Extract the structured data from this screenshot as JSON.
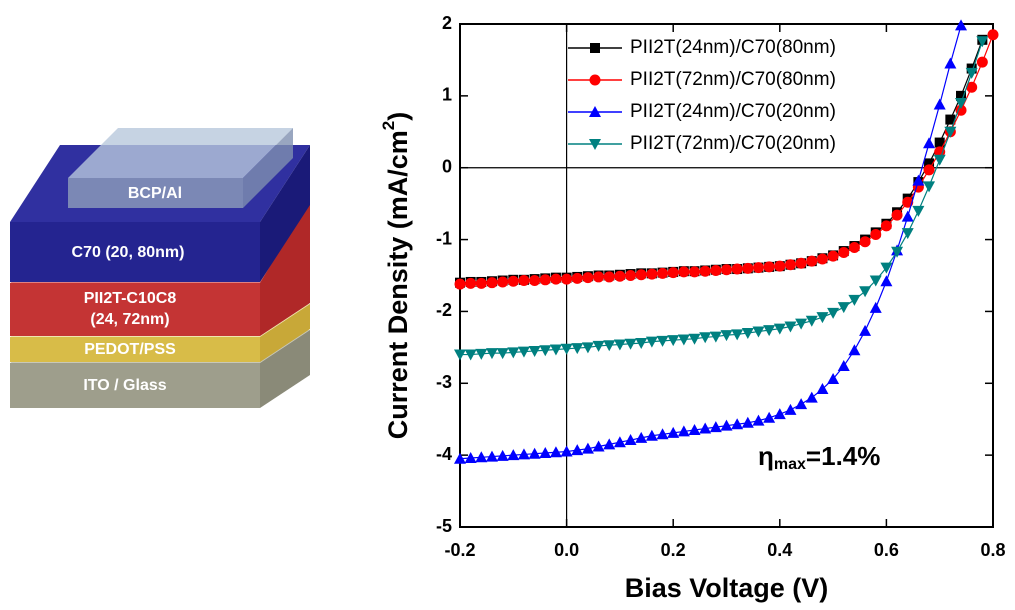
{
  "diagram": {
    "layers": [
      "BCP/Al",
      "C70 (20, 80nm)",
      "PII2T-C10C8",
      "(24, 72nm)",
      "PEDOT/PSS",
      "ITO / Glass"
    ]
  },
  "chart_data": {
    "type": "line",
    "xlabel": "Bias Voltage (V)",
    "ylabel": {
      "text": "Current Density (mA/cm",
      "superscript": "2",
      "close": ")"
    },
    "annotation": {
      "symbol": "η",
      "subscript": "max",
      "text": "=1.4%"
    },
    "xlim": [
      -0.2,
      0.8
    ],
    "ylim": [
      -5,
      2
    ],
    "xticks": [
      -0.2,
      {
        "value": 0,
        "label": "0.0"
      },
      0.2,
      0.4,
      0.6,
      0.8
    ],
    "yticks": [
      -5,
      -4,
      -3,
      -2,
      -1,
      0,
      1,
      2
    ],
    "zero_lines": true,
    "legend": "upper right",
    "x": [
      -0.2,
      -0.18,
      -0.16,
      -0.14,
      -0.12,
      -0.1,
      -0.08,
      -0.06,
      -0.04,
      -0.02,
      0,
      0.02,
      0.04,
      0.06,
      0.08,
      0.1,
      0.12,
      0.14,
      0.16,
      0.18,
      0.2,
      0.22,
      0.24,
      0.26,
      0.28,
      0.3,
      0.32,
      0.34,
      0.36,
      0.38,
      0.4,
      0.42,
      0.44,
      0.46,
      0.48,
      0.5,
      0.52,
      0.54,
      0.56,
      0.58,
      0.6,
      0.62,
      0.64,
      0.66,
      0.68,
      0.7,
      0.72,
      0.74,
      0.76,
      0.78,
      0.8
    ],
    "series": [
      {
        "name": "PII2T(24nm)/C70(80nm)",
        "color": "#000000",
        "marker": "square",
        "values": [
          -1.6,
          -1.59,
          -1.59,
          -1.58,
          -1.57,
          -1.56,
          -1.56,
          -1.55,
          -1.54,
          -1.53,
          -1.53,
          -1.52,
          -1.51,
          -1.5,
          -1.5,
          -1.49,
          -1.48,
          -1.47,
          -1.47,
          -1.46,
          -1.45,
          -1.44,
          -1.44,
          -1.43,
          -1.42,
          -1.41,
          -1.41,
          -1.4,
          -1.39,
          -1.38,
          -1.37,
          -1.35,
          -1.33,
          -1.3,
          -1.26,
          -1.22,
          -1.16,
          -1.09,
          -1.0,
          -0.9,
          -0.78,
          -0.62,
          -0.43,
          -0.2,
          0.06,
          0.35,
          0.67,
          1.0,
          1.38,
          1.78,
          null
        ]
      },
      {
        "name": "PII2T(72nm)/C70(80nm)",
        "color": "#ff0000",
        "marker": "circle",
        "values": [
          -1.62,
          -1.61,
          -1.61,
          -1.6,
          -1.59,
          -1.58,
          -1.57,
          -1.57,
          -1.56,
          -1.55,
          -1.55,
          -1.54,
          -1.53,
          -1.52,
          -1.52,
          -1.51,
          -1.5,
          -1.49,
          -1.48,
          -1.47,
          -1.46,
          -1.45,
          -1.45,
          -1.44,
          -1.43,
          -1.42,
          -1.41,
          -1.4,
          -1.39,
          -1.38,
          -1.37,
          -1.35,
          -1.33,
          -1.3,
          -1.27,
          -1.23,
          -1.18,
          -1.11,
          -1.03,
          -0.93,
          -0.81,
          -0.66,
          -0.48,
          -0.27,
          -0.03,
          0.22,
          0.5,
          0.8,
          1.12,
          1.47,
          1.85
        ]
      },
      {
        "name": "PII2T(24nm)/C70(20nm)",
        "color": "#0000ff",
        "marker": "triangle-up",
        "values": [
          -4.05,
          -4.04,
          -4.03,
          -4.02,
          -4.01,
          -4.0,
          -3.99,
          -3.98,
          -3.97,
          -3.96,
          -3.95,
          -3.93,
          -3.91,
          -3.88,
          -3.85,
          -3.82,
          -3.79,
          -3.76,
          -3.73,
          -3.71,
          -3.69,
          -3.67,
          -3.65,
          -3.63,
          -3.61,
          -3.59,
          -3.57,
          -3.55,
          -3.52,
          -3.48,
          -3.43,
          -3.37,
          -3.29,
          -3.2,
          -3.08,
          -2.94,
          -2.76,
          -2.54,
          -2.27,
          -1.95,
          -1.58,
          -1.15,
          -0.68,
          -0.18,
          0.34,
          0.88,
          1.45,
          1.98,
          null,
          null,
          null
        ]
      },
      {
        "name": "PII2T(72nm)/C70(20nm)",
        "color": "#008080",
        "marker": "triangle-down",
        "values": [
          -2.6,
          -2.6,
          -2.59,
          -2.58,
          -2.58,
          -2.57,
          -2.56,
          -2.55,
          -2.54,
          -2.53,
          -2.52,
          -2.51,
          -2.5,
          -2.48,
          -2.47,
          -2.46,
          -2.45,
          -2.44,
          -2.42,
          -2.41,
          -2.4,
          -2.39,
          -2.38,
          -2.36,
          -2.35,
          -2.33,
          -2.32,
          -2.3,
          -2.28,
          -2.26,
          -2.24,
          -2.21,
          -2.17,
          -2.13,
          -2.08,
          -2.02,
          -1.94,
          -1.84,
          -1.72,
          -1.57,
          -1.39,
          -1.17,
          -0.91,
          -0.6,
          -0.26,
          0.11,
          0.5,
          0.9,
          1.32,
          1.76,
          null
        ]
      }
    ]
  }
}
